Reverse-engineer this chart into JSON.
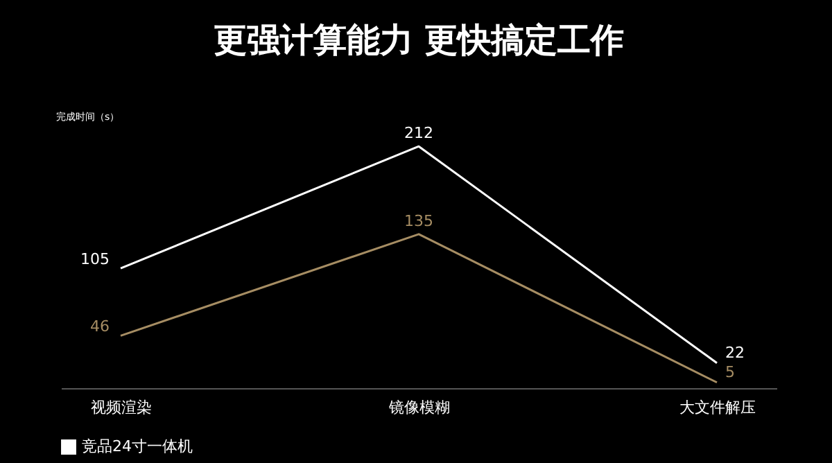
{
  "chart_data": {
    "type": "line",
    "title": "更强计算能力 更快搞定工作",
    "ylabel": "完成时间（s）",
    "categories": [
      "视频渲染",
      "镜像模糊",
      "大文件解压"
    ],
    "series": [
      {
        "name": "竞品24寸一体机",
        "color": "#ffffff",
        "values": [
          105,
          212,
          22
        ]
      },
      {
        "color": "#a68d63",
        "values": [
          46,
          135,
          5
        ]
      }
    ],
    "data_labels": true,
    "grid": false,
    "legend": "bottom",
    "marker": "none",
    "line_style": "solid"
  }
}
